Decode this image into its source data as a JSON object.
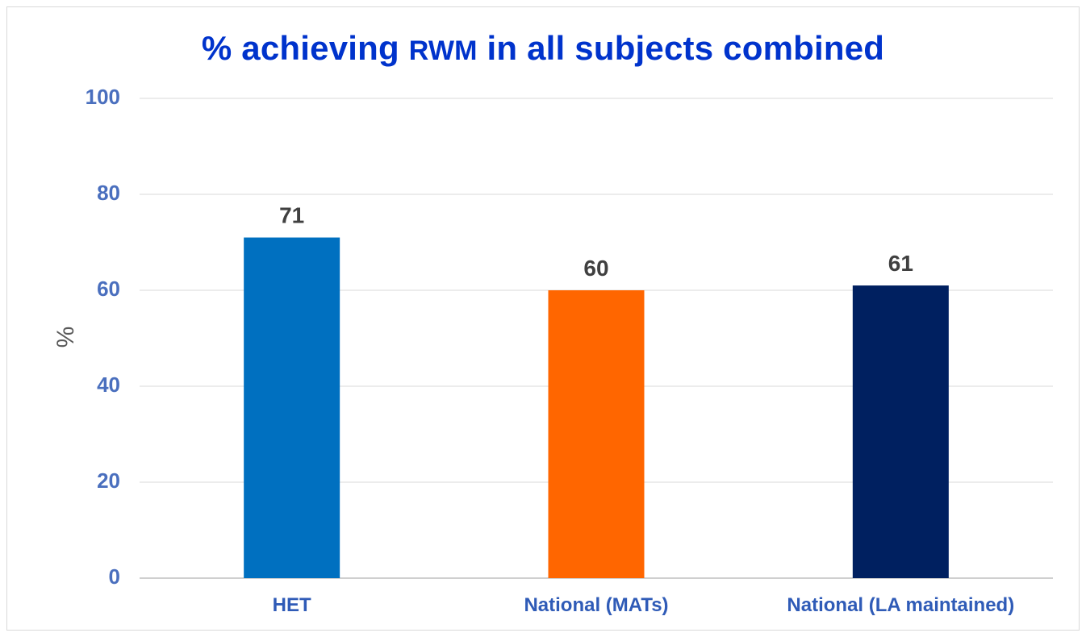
{
  "chart_data": {
    "type": "bar",
    "title_prefix": "% achieving ",
    "title_small": "RWM",
    "title_suffix": " in all subjects combined",
    "xlabel": "",
    "ylabel": "%",
    "categories": [
      "HET",
      "National (MATs)",
      "National (LA maintained)"
    ],
    "values": [
      71,
      60,
      61
    ],
    "data_labels": [
      "71",
      "60",
      "61"
    ],
    "ylim": [
      0,
      100
    ],
    "yticks": [
      0,
      20,
      40,
      60,
      80,
      100
    ],
    "grid": true,
    "legend": "none",
    "colors": [
      "#0070c0",
      "#ff6600",
      "#002060"
    ]
  }
}
